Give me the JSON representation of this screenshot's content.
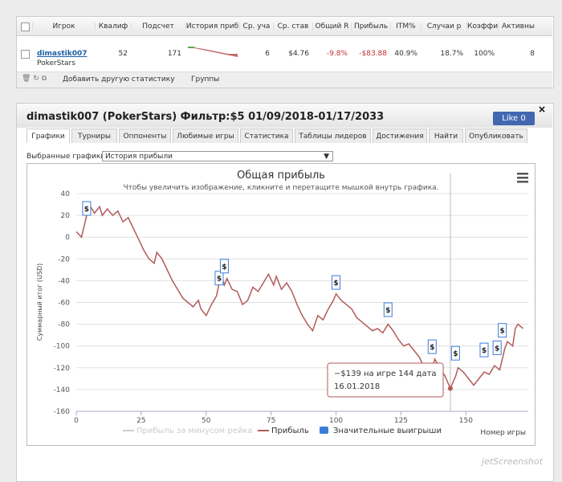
{
  "table": {
    "headers": [
      "Игрок",
      "Квалиф",
      "Подсчет",
      "История приб",
      "Ср. уча",
      "Ср. став",
      "Общий R",
      "Прибыль",
      "ITM%",
      "Случаи р",
      "Коэффиц",
      "Активны"
    ],
    "row": {
      "player": "dimastik007",
      "site": "PokerStars",
      "cells": [
        52,
        171,
        6,
        "$4.76",
        "-9.8%",
        "-$83.88",
        "40.9%",
        "18.7%",
        "100%",
        8
      ]
    },
    "toolbar": [
      "Добавить другую статистику",
      "Группы"
    ]
  },
  "panel": {
    "title": "dimastik007 (PokerStars) Фильтр:$5 01/09/2018-01/17/2033",
    "like": "Like 0",
    "tabs": [
      "Графики",
      "Турниры",
      "Оппоненты",
      "Любимые игры",
      "Статистика",
      "Таблицы лидеров",
      "Достижения",
      "Найти",
      "Опубликовать"
    ],
    "select_label": "Выбранные графики:",
    "select_value": "История прибыли"
  },
  "chart_data": {
    "type": "line",
    "title": "Общая прибыль",
    "subtitle": "Чтобы увеличить изображение, кликните и перетащите мышкой внутрь графика.",
    "y_label": "Суммарный итог (USD)",
    "x_label": "Номер игры",
    "xlim": [
      0,
      174
    ],
    "ylim": [
      -160,
      40
    ],
    "xticks": [
      0,
      25,
      50,
      75,
      100,
      125,
      150
    ],
    "yticks": [
      -160,
      -140,
      -120,
      -100,
      -80,
      -60,
      -40,
      -20,
      0,
      20,
      40
    ],
    "grid": true,
    "series": [
      {
        "name": "Прибыль за минусом рейка",
        "color": "#cccccc",
        "visible": false
      },
      {
        "name": "Прибыль",
        "color": "#b35a5a",
        "x": [
          0,
          2,
          5,
          7,
          9,
          10,
          12,
          14,
          16,
          18,
          20,
          22,
          24,
          26,
          28,
          30,
          31,
          33,
          35,
          37,
          39,
          41,
          43,
          45,
          47,
          48,
          50,
          52,
          54,
          55,
          56,
          57,
          58,
          60,
          62,
          64,
          66,
          68,
          70,
          72,
          74,
          76,
          77,
          79,
          81,
          83,
          85,
          87,
          89,
          91,
          93,
          95,
          97,
          99,
          100,
          102,
          104,
          106,
          108,
          110,
          112,
          114,
          116,
          118,
          120,
          122,
          124,
          126,
          128,
          130,
          132,
          134,
          136,
          138,
          140,
          142,
          144,
          146,
          147,
          149,
          151,
          153,
          155,
          157,
          159,
          161,
          163,
          165,
          166,
          168,
          169,
          170,
          172
        ],
        "values": [
          5,
          0,
          30,
          22,
          28,
          20,
          26,
          20,
          24,
          14,
          18,
          8,
          -2,
          -12,
          -20,
          -24,
          -14,
          -20,
          -30,
          -40,
          -48,
          -56,
          -60,
          -64,
          -58,
          -66,
          -72,
          -62,
          -54,
          -42,
          -36,
          -44,
          -38,
          -48,
          -50,
          -62,
          -58,
          -46,
          -50,
          -42,
          -34,
          -44,
          -36,
          -48,
          -42,
          -50,
          -62,
          -72,
          -80,
          -86,
          -72,
          -76,
          -66,
          -58,
          -52,
          -58,
          -62,
          -66,
          -74,
          -78,
          -82,
          -86,
          -84,
          -88,
          -80,
          -86,
          -94,
          -100,
          -98,
          -104,
          -110,
          -120,
          -130,
          -112,
          -120,
          -128,
          -139,
          -128,
          -120,
          -124,
          -130,
          -136,
          -130,
          -124,
          -126,
          -118,
          -122,
          -102,
          -96,
          -100,
          -84,
          -80,
          -84
        ]
      },
      {
        "name": "Значительные выигрыши",
        "color": "#3b7dd8",
        "marker_label": "$",
        "x": [
          4,
          55,
          57,
          100,
          120,
          137,
          146,
          157,
          162,
          164
        ],
        "values": [
          26,
          -38,
          -27,
          -42,
          -67,
          -101,
          -107,
          -104,
          -102,
          -86
        ]
      }
    ],
    "tooltip": {
      "text": "−$139 на игре 144 дата",
      "date": "16.01.2018",
      "x": 144,
      "y": -139
    }
  },
  "watermark": "jetScreenshot"
}
